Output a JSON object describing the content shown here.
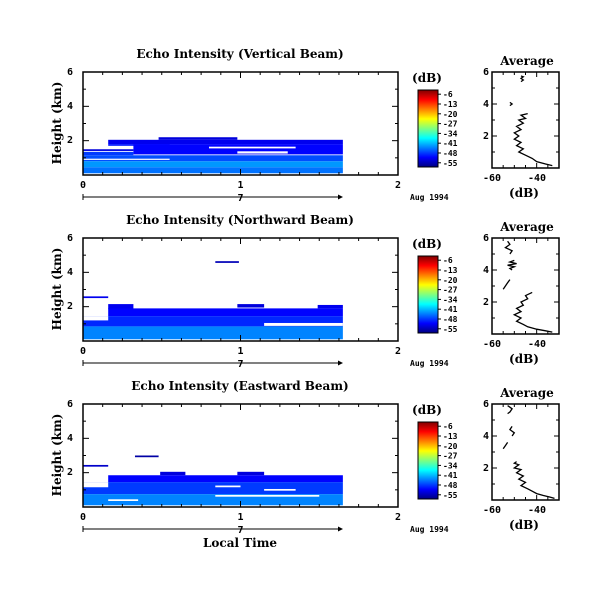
{
  "chart_data": [
    {
      "id": "vertical",
      "type": "heatmap",
      "title": "Echo Intensity (Vertical Beam)",
      "ylabel": "Height (km)",
      "xlabel": "",
      "x_ticks": [
        "0",
        "1",
        "2"
      ],
      "y_ticks": [
        "6",
        "4",
        "2"
      ],
      "xlim": [
        0,
        2
      ],
      "ylim": [
        0,
        6
      ],
      "date_axis": {
        "day_label": "7",
        "date_label": "Aug 1994",
        "arrow_end": 1.62
      },
      "colorbar": {
        "title": "(dB)",
        "labels": [
          "-6",
          "-13",
          "-20",
          "-27",
          "-34",
          "-41",
          "-48",
          "-55"
        ],
        "range": [
          -58,
          -3
        ]
      },
      "cells": [
        {
          "x0": 0.48,
          "x1": 0.98,
          "y0": 2.05,
          "y1": 2.2,
          "v": -53
        },
        {
          "x0": 0.16,
          "x1": 1.65,
          "y0": 1.8,
          "y1": 2.05,
          "v": -52
        },
        {
          "x0": 0.16,
          "x1": 0.55,
          "y0": 1.7,
          "y1": 1.8,
          "v": -50
        },
        {
          "x0": 0.0,
          "x1": 0.32,
          "y0": 1.4,
          "y1": 1.5,
          "v": -53
        },
        {
          "x0": 0.32,
          "x1": 1.65,
          "y0": 1.2,
          "y1": 1.8,
          "v": -51
        },
        {
          "x0": 0.0,
          "x1": 0.32,
          "y0": 1.15,
          "y1": 1.35,
          "v": -48
        },
        {
          "x0": 0.0,
          "x1": 1.65,
          "y0": 0.8,
          "y1": 1.15,
          "v": -47
        },
        {
          "x0": 0.0,
          "x1": 1.65,
          "y0": 0.45,
          "y1": 0.8,
          "v": -43
        },
        {
          "x0": 0.0,
          "x1": 1.65,
          "y0": 0.1,
          "y1": 0.45,
          "v": -45
        }
      ],
      "gaps": [
        {
          "x0": 0.8,
          "x1": 1.35,
          "y0": 1.55,
          "y1": 1.65
        },
        {
          "x0": 0.98,
          "x1": 1.3,
          "y0": 1.25,
          "y1": 1.38
        },
        {
          "x0": 0.0,
          "x1": 0.55,
          "y0": 0.88,
          "y1": 0.95
        }
      ],
      "profile": {
        "title": "Average",
        "xlabel": "(dB)",
        "x_ticks": [
          "-60",
          "-40"
        ],
        "y_ticks": [
          "6",
          "4",
          "2"
        ],
        "xlim": [
          -60,
          -30
        ],
        "ylim": [
          0,
          6
        ],
        "segments": [
          [
            [
              -47,
              5.4
            ],
            [
              -46,
              5.5
            ],
            [
              -47,
              5.6
            ],
            [
              -46,
              5.7
            ],
            [
              -47,
              5.75
            ]
          ],
          [
            [
              -52,
              3.9
            ],
            [
              -51,
              4.0
            ],
            [
              -52,
              4.1
            ]
          ],
          [
            [
              -44,
              3.4
            ],
            [
              -47,
              3.3
            ],
            [
              -45,
              3.1
            ],
            [
              -48,
              3.0
            ],
            [
              -46,
              2.8
            ],
            [
              -49,
              2.6
            ],
            [
              -47,
              2.4
            ],
            [
              -50,
              2.2
            ],
            [
              -48,
              2.0
            ],
            [
              -50,
              1.8
            ],
            [
              -47,
              1.6
            ],
            [
              -49,
              1.4
            ],
            [
              -46,
              1.2
            ],
            [
              -48,
              1.0
            ],
            [
              -45,
              0.8
            ],
            [
              -42,
              0.6
            ],
            [
              -40,
              0.4
            ],
            [
              -36,
              0.25
            ],
            [
              -33,
              0.15
            ]
          ]
        ]
      }
    },
    {
      "id": "northward",
      "type": "heatmap",
      "title": "Echo Intensity (Northward Beam)",
      "ylabel": "Height (km)",
      "xlabel": "",
      "x_ticks": [
        "0",
        "1",
        "2"
      ],
      "y_ticks": [
        "6",
        "4",
        "2"
      ],
      "xlim": [
        0,
        2
      ],
      "ylim": [
        0,
        6
      ],
      "date_axis": {
        "day_label": "7",
        "date_label": "Aug 1994",
        "arrow_end": 1.62
      },
      "colorbar": {
        "title": "(dB)",
        "labels": [
          "-6",
          "-13",
          "-20",
          "-27",
          "-34",
          "-41",
          "-48",
          "-55"
        ],
        "range": [
          -58,
          -3
        ]
      },
      "cells": [
        {
          "x0": 0.84,
          "x1": 0.99,
          "y0": 4.55,
          "y1": 4.65,
          "v": -55
        },
        {
          "x0": 0.0,
          "x1": 0.16,
          "y0": 2.5,
          "y1": 2.6,
          "v": -52
        },
        {
          "x0": 0.16,
          "x1": 0.32,
          "y0": 1.85,
          "y1": 2.15,
          "v": -52
        },
        {
          "x0": 0.98,
          "x1": 1.15,
          "y0": 1.95,
          "y1": 2.15,
          "v": -53
        },
        {
          "x0": 1.49,
          "x1": 1.65,
          "y0": 1.9,
          "y1": 2.1,
          "v": -52
        },
        {
          "x0": 0.16,
          "x1": 1.65,
          "y0": 1.45,
          "y1": 1.9,
          "v": -51
        },
        {
          "x0": 0.0,
          "x1": 0.16,
          "y0": 1.1,
          "y1": 1.2,
          "v": -52
        },
        {
          "x0": 0.0,
          "x1": 1.65,
          "y0": 0.85,
          "y1": 1.45,
          "v": -49
        },
        {
          "x0": 0.0,
          "x1": 1.65,
          "y0": 0.1,
          "y1": 0.85,
          "v": -44
        }
      ],
      "gaps": [
        {
          "x0": 0.0,
          "x1": 0.16,
          "y0": 1.2,
          "y1": 1.45
        },
        {
          "x0": 1.15,
          "x1": 1.65,
          "y0": 0.88,
          "y1": 1.05
        }
      ],
      "profile": {
        "title": "Average",
        "xlabel": "(dB)",
        "x_ticks": [
          "-60",
          "-40"
        ],
        "y_ticks": [
          "6",
          "4",
          "2"
        ],
        "xlim": [
          -60,
          -30
        ],
        "ylim": [
          0,
          6
        ],
        "segments": [
          [
            [
              -53,
              5.8
            ],
            [
              -52,
              5.6
            ],
            [
              -54,
              5.4
            ],
            [
              -51,
              5.2
            ],
            [
              -52,
              5.0
            ]
          ],
          [
            [
              -50,
              4.6
            ],
            [
              -52,
              4.5
            ],
            [
              -49,
              4.4
            ],
            [
              -53,
              4.3
            ],
            [
              -50,
              4.2
            ],
            [
              -52,
              4.1
            ],
            [
              -51,
              4.0
            ]
          ],
          [
            [
              -55,
              2.8
            ],
            [
              -54,
              3.0
            ],
            [
              -53,
              3.2
            ],
            [
              -52,
              3.4
            ]
          ],
          [
            [
              -42,
              2.6
            ],
            [
              -45,
              2.4
            ],
            [
              -44,
              2.2
            ],
            [
              -47,
              2.0
            ],
            [
              -46,
              1.8
            ],
            [
              -49,
              1.6
            ],
            [
              -47,
              1.4
            ],
            [
              -50,
              1.2
            ],
            [
              -47,
              1.0
            ],
            [
              -49,
              0.8
            ],
            [
              -46,
              0.6
            ],
            [
              -44,
              0.45
            ],
            [
              -40,
              0.3
            ],
            [
              -36,
              0.2
            ],
            [
              -33,
              0.12
            ]
          ]
        ]
      }
    },
    {
      "id": "eastward",
      "type": "heatmap",
      "title": "Echo Intensity (Eastward Beam)",
      "ylabel": "Height (km)",
      "xlabel": "Local Time",
      "x_ticks": [
        "0",
        "1",
        "2"
      ],
      "y_ticks": [
        "6",
        "4",
        "2"
      ],
      "xlim": [
        0,
        2
      ],
      "ylim": [
        0,
        6
      ],
      "date_axis": {
        "day_label": "7",
        "date_label": "Aug 1994",
        "arrow_end": 1.62
      },
      "colorbar": {
        "title": "(dB)",
        "labels": [
          "-6",
          "-13",
          "-20",
          "-27",
          "-34",
          "-41",
          "-48",
          "-55"
        ],
        "range": [
          -58,
          -3
        ]
      },
      "cells": [
        {
          "x0": 0.33,
          "x1": 0.48,
          "y0": 2.9,
          "y1": 3.0,
          "v": -56
        },
        {
          "x0": 0.0,
          "x1": 0.16,
          "y0": 2.35,
          "y1": 2.45,
          "v": -54
        },
        {
          "x0": 0.49,
          "x1": 0.65,
          "y0": 1.85,
          "y1": 2.05,
          "v": -53
        },
        {
          "x0": 0.98,
          "x1": 1.15,
          "y0": 1.85,
          "y1": 2.05,
          "v": -53
        },
        {
          "x0": 0.16,
          "x1": 1.65,
          "y0": 1.45,
          "y1": 1.85,
          "v": -51
        },
        {
          "x0": 0.0,
          "x1": 0.16,
          "y0": 1.05,
          "y1": 1.15,
          "v": -53
        },
        {
          "x0": 0.0,
          "x1": 1.65,
          "y0": 0.75,
          "y1": 1.45,
          "v": -48
        },
        {
          "x0": 0.0,
          "x1": 1.65,
          "y0": 0.1,
          "y1": 0.75,
          "v": -44
        }
      ],
      "gaps": [
        {
          "x0": 0.0,
          "x1": 0.16,
          "y0": 1.15,
          "y1": 1.45
        },
        {
          "x0": 0.84,
          "x1": 1.0,
          "y0": 1.15,
          "y1": 1.25
        },
        {
          "x0": 1.15,
          "x1": 1.35,
          "y0": 0.95,
          "y1": 1.05
        },
        {
          "x0": 0.84,
          "x1": 1.5,
          "y0": 0.6,
          "y1": 0.7
        },
        {
          "x0": 0.16,
          "x1": 0.35,
          "y0": 0.35,
          "y1": 0.45
        }
      ],
      "profile": {
        "title": "Average",
        "xlabel": "(dB)",
        "x_ticks": [
          "-60",
          "-40"
        ],
        "y_ticks": [
          "6",
          "4",
          "2"
        ],
        "xlim": [
          -60,
          -30
        ],
        "ylim": [
          0,
          6
        ],
        "segments": [
          [
            [
              -53,
              5.9
            ],
            [
              -52,
              5.8
            ],
            [
              -51,
              5.7
            ],
            [
              -52,
              5.5
            ],
            [
              -53,
              5.4
            ]
          ],
          [
            [
              -51,
              4.6
            ],
            [
              -52,
              4.4
            ],
            [
              -50,
              4.2
            ],
            [
              -51,
              4.0
            ]
          ],
          [
            [
              -55,
              3.2
            ],
            [
              -54,
              3.4
            ],
            [
              -53,
              3.6
            ]
          ],
          [
            [
              -49,
              2.4
            ],
            [
              -50,
              2.3
            ],
            [
              -48,
              2.2
            ],
            [
              -50,
              2.0
            ],
            [
              -47,
              1.9
            ],
            [
              -49,
              1.7
            ],
            [
              -46,
              1.5
            ],
            [
              -48,
              1.3
            ],
            [
              -45,
              1.1
            ],
            [
              -47,
              0.9
            ],
            [
              -44,
              0.7
            ],
            [
              -42,
              0.55
            ],
            [
              -40,
              0.4
            ],
            [
              -37,
              0.28
            ],
            [
              -34,
              0.18
            ],
            [
              -32,
              0.1
            ]
          ]
        ]
      }
    }
  ]
}
